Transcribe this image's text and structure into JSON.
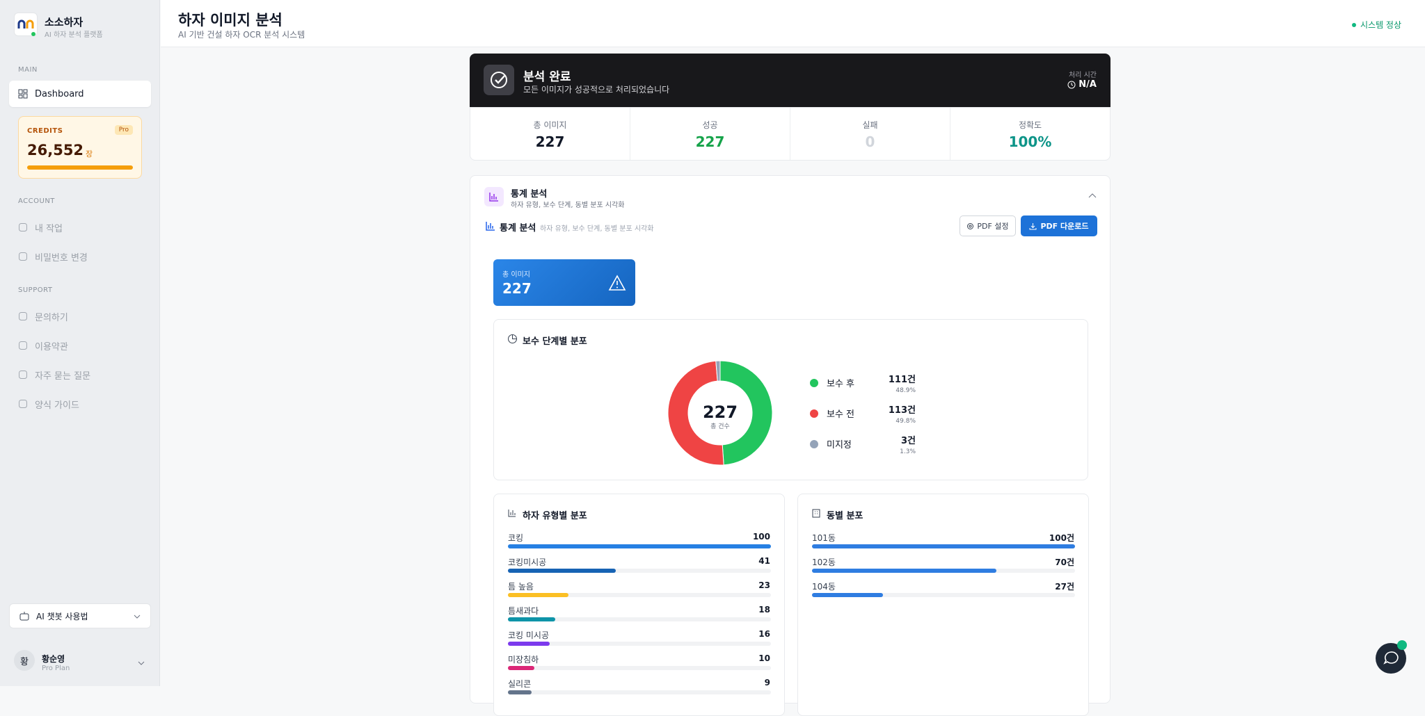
{
  "sidebar": {
    "brand": "소소하자",
    "tagline": "AI 하자 분석 플랫폼",
    "main_label": "MAIN",
    "main_items": [
      "Dashboard"
    ],
    "credits": {
      "label": "CREDITS",
      "badge": "Pro",
      "value": "26,552",
      "unit": "장"
    },
    "account_label": "ACCOUNT",
    "account_items": [
      "내 작업",
      "비밀번호 변경"
    ],
    "support_label": "SUPPORT",
    "support_items": [
      "문의하기",
      "이용약관",
      "자주 묻는 질문",
      "양식 가이드"
    ],
    "chatbot": "AI 챗봇 사용법",
    "user": {
      "initial": "황",
      "name": "황순영",
      "plan": "Pro Plan"
    }
  },
  "header": {
    "title": "하자 이미지 분석",
    "subtitle": "AI 기반 건설 하자 OCR 분석 시스템",
    "status": "시스템 정상"
  },
  "banner": {
    "title": "분석 완료",
    "message": "모든 이미지가 성공적으로 처리되었습니다",
    "time_label": "처리 시간",
    "time_value": "N/A"
  },
  "stats": [
    {
      "label": "총 이미지",
      "value": 227
    },
    {
      "label": "성공",
      "value": 227
    },
    {
      "label": "실패",
      "value": 0
    },
    {
      "label": "정확도",
      "value": "100%"
    }
  ],
  "section": {
    "title": "통계 분석",
    "subtitle": "하자 유형, 보수 단계, 동별 분포 시각화",
    "toolbar_title": "통계 분석",
    "toolbar_subtitle": "하자 유형, 보수 단계, 동별 분포 시각화",
    "buttons": [
      "PDF 설정",
      "PDF 다운로드"
    ]
  },
  "total_card": {
    "label": "총 이미지",
    "value": 227
  },
  "donut": {
    "type": "donut",
    "title": "보수 단계별 분포",
    "center_value": 227,
    "center_label": "총 건수",
    "categories": [
      "보수 후",
      "보수 전",
      "미지정"
    ],
    "values": [
      111,
      113,
      3
    ],
    "value_labels": [
      "111건",
      "113건",
      "3건"
    ],
    "percent_labels": [
      "48.9%",
      "49.8%",
      "1.3%"
    ],
    "colors": [
      "#22c55e",
      "#ef4444",
      "#94a3b8"
    ]
  },
  "defects": {
    "type": "bar",
    "title": "하자 유형별 분포",
    "xlim": [
      0,
      100
    ],
    "categories": [
      "코킹",
      "코킹미시공",
      "틈 높음",
      "틈새과다",
      "코킹 미시공",
      "미장침하",
      "실리콘"
    ],
    "values": [
      100,
      41,
      23,
      18,
      16,
      10,
      9
    ],
    "colors": [
      "#2680e3",
      "#1763b4",
      "#fbbf24",
      "#0e94a8",
      "#7c3aed",
      "#db2777",
      "#64748b"
    ]
  },
  "buildings": {
    "type": "bar",
    "title": "동별 분포",
    "xlim": [
      0,
      100
    ],
    "categories": [
      "101동",
      "102동",
      "104동"
    ],
    "values": [
      100,
      70,
      27
    ],
    "value_labels": [
      "100건",
      "70건",
      "27건"
    ],
    "color": "#2f7de1"
  }
}
